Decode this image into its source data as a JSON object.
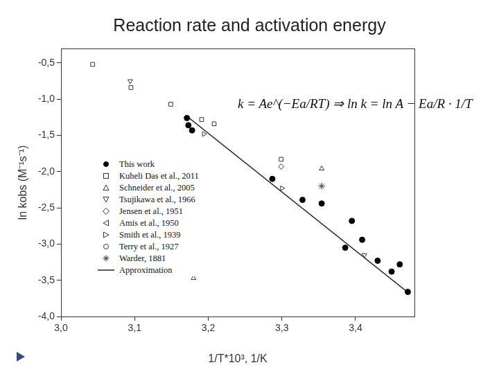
{
  "chart_data": {
    "type": "scatter",
    "title": "Reaction rate and activation energy",
    "x_label": "1/T*10³, 1/K",
    "y_label": "ln kobs (M⁻¹s⁻¹)",
    "annotation": "k = Ae^(−Ea/RT) ⇒ ln k = ln A − Ea/R · 1/T",
    "xlim": [
      3.0,
      3.48
    ],
    "xticks": [
      {
        "value": 3.0,
        "label": "3,0"
      },
      {
        "value": 3.1,
        "label": "3,1"
      },
      {
        "value": 3.2,
        "label": "3,2"
      },
      {
        "value": 3.3,
        "label": "3,3"
      },
      {
        "value": 3.4,
        "label": "3,4"
      }
    ],
    "ylim": [
      -4.0,
      -0.3
    ],
    "yticks": [
      {
        "value": -4.0,
        "label": "-4,0"
      },
      {
        "value": -3.5,
        "label": "-3,5"
      },
      {
        "value": -3.0,
        "label": "-3,0"
      },
      {
        "value": -2.5,
        "label": "-2,5"
      },
      {
        "value": -2.0,
        "label": "-2,0"
      },
      {
        "value": -1.5,
        "label": "-1,5"
      },
      {
        "value": -1.0,
        "label": "-1,0"
      },
      {
        "value": -0.5,
        "label": "-0,5"
      }
    ],
    "grid": false,
    "legend": "left",
    "series": [
      {
        "name": "This work",
        "color": "#000000",
        "marker": "filled_circle",
        "x": [
          3.171,
          3.173,
          3.178,
          3.287,
          3.328,
          3.354,
          3.386,
          3.395,
          3.409,
          3.43,
          3.449,
          3.46,
          3.471
        ],
        "values": [
          -1.26,
          -1.36,
          -1.43,
          -2.1,
          -2.39,
          -2.44,
          -3.05,
          -2.68,
          -2.94,
          -3.23,
          -3.38,
          -3.28,
          -3.66
        ]
      },
      {
        "name": "Kuheli Das et al., 2011",
        "color": "#333333",
        "marker": "open_square",
        "x": [
          3.043,
          3.095,
          3.149,
          3.191,
          3.208,
          3.299
        ],
        "values": [
          -0.52,
          -0.84,
          -1.07,
          -1.28,
          -1.34,
          -1.83
        ]
      },
      {
        "name": "Schneider et al., 2005",
        "color": "#333333",
        "marker": "open_triangle_up",
        "x": [
          3.18,
          3.354
        ],
        "values": [
          -3.47,
          -1.96
        ]
      },
      {
        "name": "Tsujikawa et al., 1966",
        "color": "#333333",
        "marker": "open_triangle_down",
        "x": [
          3.094,
          3.412
        ],
        "values": [
          -0.75,
          -3.15
        ]
      },
      {
        "name": "Jensen et al., 1951",
        "color": "#333333",
        "marker": "open_diamond",
        "x": [
          3.299
        ],
        "values": [
          -1.93
        ]
      },
      {
        "name": "Amis et al., 1950",
        "color": "#333333",
        "marker": "open_triangle_left",
        "x": [],
        "values": []
      },
      {
        "name": "Smith et al., 1939",
        "color": "#333333",
        "marker": "open_triangle_right",
        "x": [
          3.194,
          3.3
        ],
        "values": [
          -1.48,
          -2.23
        ]
      },
      {
        "name": "Terry et al., 1927",
        "color": "#333333",
        "marker": "open_circle",
        "x": [],
        "values": []
      },
      {
        "name": "Warder, 1881",
        "color": "#333333",
        "marker": "open_star",
        "x": [
          3.354
        ],
        "values": [
          -2.2
        ]
      },
      {
        "name": "Approximation",
        "color": "#333333",
        "type": "line",
        "line_style": "solid",
        "x": [
          3.174,
          3.474
        ],
        "values": [
          -1.26,
          -3.69
        ]
      }
    ]
  }
}
